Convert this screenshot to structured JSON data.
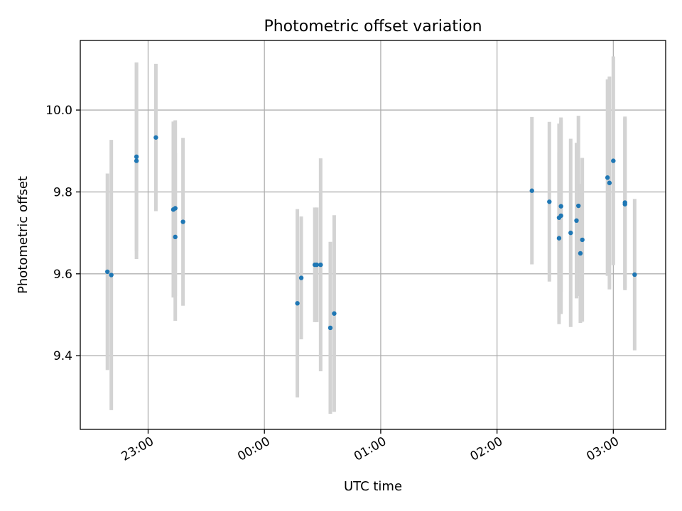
{
  "chart_data": {
    "type": "scatter",
    "title": "Photometric offset variation",
    "xlabel": "UTC time",
    "ylabel": "Photometric offset",
    "x_axis": {
      "kind": "time",
      "xlim": [
        "22:25",
        "03:27"
      ],
      "tick_values": [
        "23:00",
        "00:00",
        "01:00",
        "02:00",
        "03:00"
      ],
      "tick_labels": [
        "23:00",
        "00:00",
        "01:00",
        "02:00",
        "03:00"
      ],
      "tick_label_rotation": "30deg"
    },
    "y_axis": {
      "ylim": [
        9.22,
        10.17
      ],
      "tick_values": [
        9.4,
        9.6,
        9.8,
        10.0
      ],
      "tick_labels": [
        "9.4",
        "9.6",
        "9.8",
        "10.0"
      ]
    },
    "grid": true,
    "legend": "none",
    "colors": {
      "points": "#1f77b4",
      "error_bars": "#d3d3d3"
    },
    "series": [
      {
        "points": [
          {
            "x": "22:39",
            "y": 9.605,
            "yerr": 0.24
          },
          {
            "x": "22:41",
            "y": 9.597,
            "yerr": 0.33
          },
          {
            "x": "22:54",
            "y": 9.876,
            "yerr": 0.24
          },
          {
            "x": "22:54",
            "y": 9.886,
            "yerr": 0.23
          },
          {
            "x": "23:04",
            "y": 9.933,
            "yerr": 0.18
          },
          {
            "x": "23:13",
            "y": 9.757,
            "yerr": 0.215
          },
          {
            "x": "23:14",
            "y": 9.69,
            "yerr": 0.205
          },
          {
            "x": "23:14",
            "y": 9.76,
            "yerr": 0.215
          },
          {
            "x": "23:18",
            "y": 9.727,
            "yerr": 0.205
          },
          {
            "x": "00:17",
            "y": 9.528,
            "yerr": 0.23
          },
          {
            "x": "00:19",
            "y": 9.59,
            "yerr": 0.15
          },
          {
            "x": "00:26",
            "y": 9.622,
            "yerr": 0.14
          },
          {
            "x": "00:27",
            "y": 9.622,
            "yerr": 0.14
          },
          {
            "x": "00:29",
            "y": 9.622,
            "yerr": 0.26
          },
          {
            "x": "00:34",
            "y": 9.468,
            "yerr": 0.21
          },
          {
            "x": "00:36",
            "y": 9.503,
            "yerr": 0.24
          },
          {
            "x": "02:18",
            "y": 9.803,
            "yerr": 0.18
          },
          {
            "x": "02:27",
            "y": 9.776,
            "yerr": 0.195
          },
          {
            "x": "02:32",
            "y": 9.687,
            "yerr": 0.21
          },
          {
            "x": "02:32",
            "y": 9.737,
            "yerr": 0.23
          },
          {
            "x": "02:33",
            "y": 9.765,
            "yerr": 0.21
          },
          {
            "x": "02:33",
            "y": 9.742,
            "yerr": 0.24
          },
          {
            "x": "02:38",
            "y": 9.7,
            "yerr": 0.23
          },
          {
            "x": "02:41",
            "y": 9.73,
            "yerr": 0.19
          },
          {
            "x": "02:42",
            "y": 9.766,
            "yerr": 0.22
          },
          {
            "x": "02:43",
            "y": 9.65,
            "yerr": 0.17
          },
          {
            "x": "02:44",
            "y": 9.683,
            "yerr": 0.2
          },
          {
            "x": "02:57",
            "y": 9.835,
            "yerr": 0.24
          },
          {
            "x": "02:58",
            "y": 9.822,
            "yerr": 0.26
          },
          {
            "x": "03:00",
            "y": 9.876,
            "yerr": 0.255
          },
          {
            "x": "03:06",
            "y": 9.774,
            "yerr": 0.21
          },
          {
            "x": "03:06",
            "y": 9.77,
            "yerr": 0.21
          },
          {
            "x": "03:11",
            "y": 9.598,
            "yerr": 0.185
          }
        ]
      }
    ]
  }
}
